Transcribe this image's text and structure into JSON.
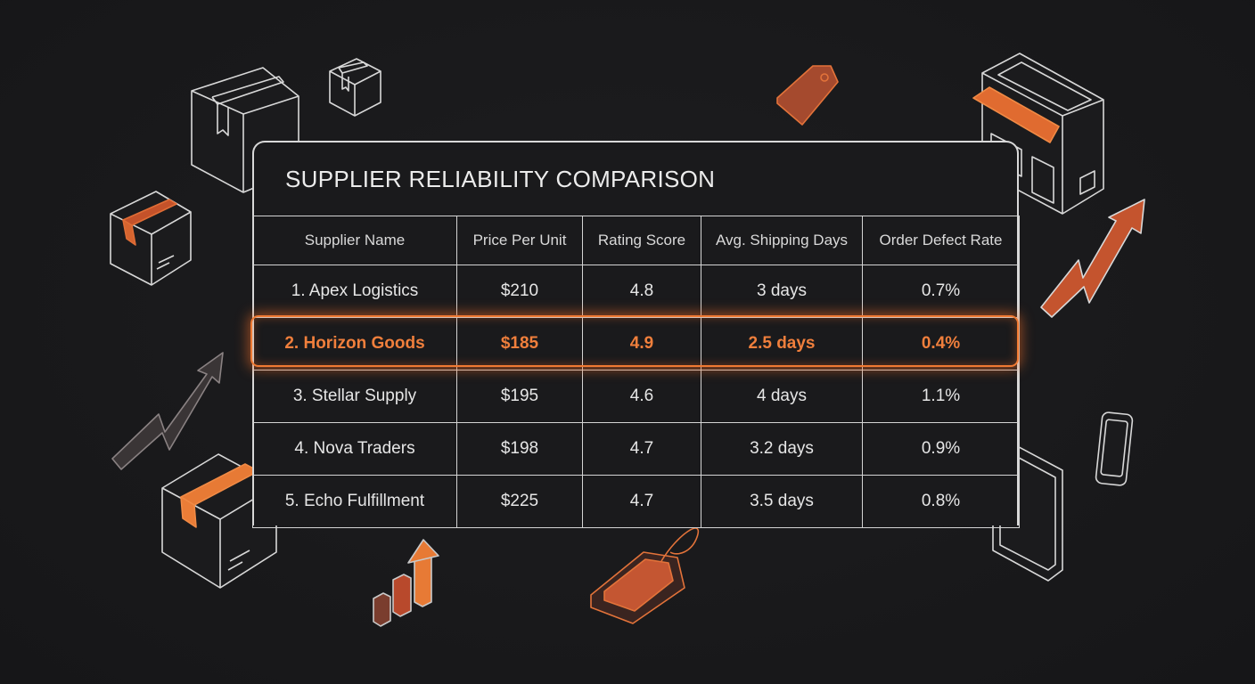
{
  "table": {
    "title": "SUPPLIER RELIABILITY COMPARISON",
    "headers": [
      "Supplier Name",
      "Price Per Unit",
      "Rating Score",
      "Avg. Shipping Days",
      "Order Defect Rate"
    ],
    "rows": [
      {
        "name": "1.  Apex Logistics",
        "price": "$210",
        "rating": "4.8",
        "shipping": "3 days",
        "defect": "0.7%"
      },
      {
        "name": "2. Horizon Goods",
        "price": "$185",
        "rating": "4.9",
        "shipping": "2.5 days",
        "defect": "0.4%"
      },
      {
        "name": "3.  Stellar Supply",
        "price": "$195",
        "rating": "4.6",
        "shipping": "4 days",
        "defect": "1.1%"
      },
      {
        "name": "4.  Nova Traders",
        "price": "$198",
        "rating": "4.7",
        "shipping": "3.2 days",
        "defect": "0.9%"
      },
      {
        "name": "5.  Echo Fulfillment",
        "price": "$225",
        "rating": "4.7",
        "shipping": "3.5 days",
        "defect": "0.8%"
      }
    ],
    "highlighted_row": 2
  },
  "colors": {
    "background": "#19191b",
    "accent": "#f07a33",
    "line": "#d9d9d9"
  },
  "icons": [
    "box-icon",
    "storefront-icon",
    "price-tag-icon",
    "trend-arrow-icon",
    "smartphone-icon",
    "tablet-icon",
    "bar-chart-icon"
  ]
}
